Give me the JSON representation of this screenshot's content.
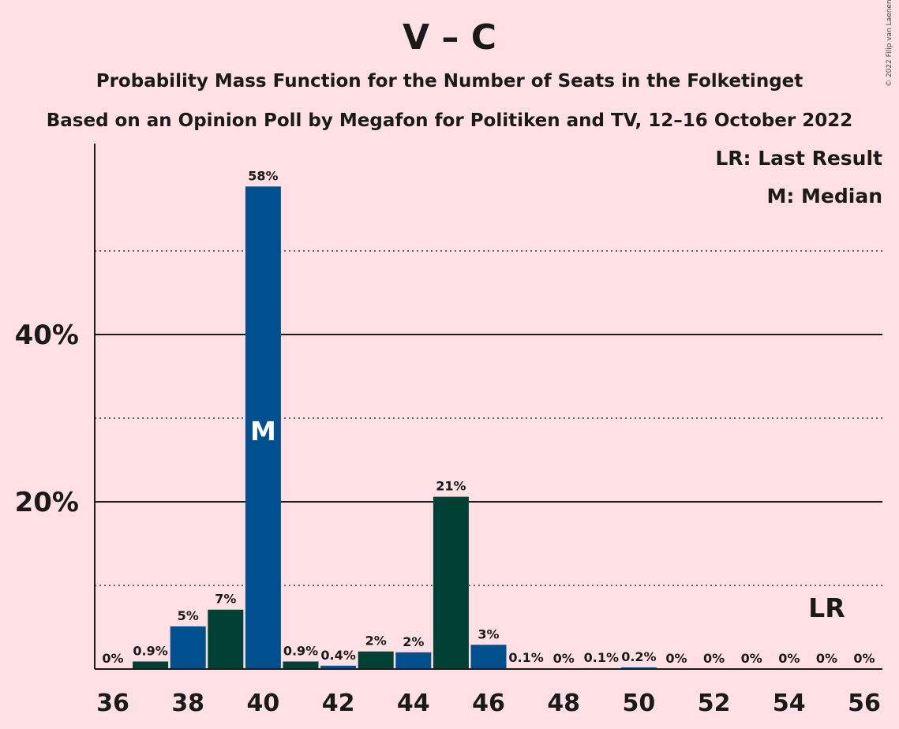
{
  "chart_data": {
    "type": "bar",
    "title": "V – C",
    "subtitle_1": "Probability Mass Function for the Number of Seats in the Folketinget",
    "subtitle_2": "Based on an Opinion Poll by Megafon for Politiken and TV, 12–16 October 2022",
    "copyright": "© 2022 Filip van Laenen",
    "x": [
      36,
      37,
      38,
      39,
      40,
      41,
      42,
      43,
      44,
      45,
      46,
      47,
      48,
      49,
      50,
      51,
      52,
      53,
      54,
      55,
      56
    ],
    "values": [
      0,
      0.9,
      5,
      7,
      58,
      0.9,
      0.4,
      2,
      2,
      21,
      3,
      0.1,
      0,
      0.1,
      0.2,
      0,
      0,
      0,
      0,
      0,
      0
    ],
    "heights": [
      0,
      0.9,
      5.1,
      7.1,
      57.7,
      0.9,
      0.4,
      2.1,
      2.0,
      20.6,
      2.9,
      0.1,
      0,
      0.1,
      0.2,
      0,
      0,
      0,
      0,
      0,
      0
    ],
    "labels": [
      "0%",
      "0.9%",
      "5%",
      "7%",
      "58%",
      "0.9%",
      "0.4%",
      "2%",
      "2%",
      "21%",
      "3%",
      "0.1%",
      "0%",
      "0.1%",
      "0.2%",
      "0%",
      "0%",
      "0%",
      "0%",
      "0%",
      "0%"
    ],
    "x_ticks": [
      36,
      38,
      40,
      42,
      44,
      46,
      48,
      50,
      52,
      54,
      56
    ],
    "y_ticks": [
      {
        "value": 20,
        "label": "20%"
      },
      {
        "value": 40,
        "label": "40%"
      }
    ],
    "minor_gridlines": [
      10,
      30,
      50
    ],
    "ylim": [
      0,
      62
    ],
    "median": 40,
    "median_mark": "M",
    "last_result": 55,
    "last_result_mark": "LR",
    "legend": [
      "LR: Last Result",
      "M: Median"
    ],
    "colors": {
      "background": "#FFE0E5",
      "bar_blue": "#00508F",
      "bar_green": "#004035",
      "text": "#1a1a1a"
    }
  }
}
